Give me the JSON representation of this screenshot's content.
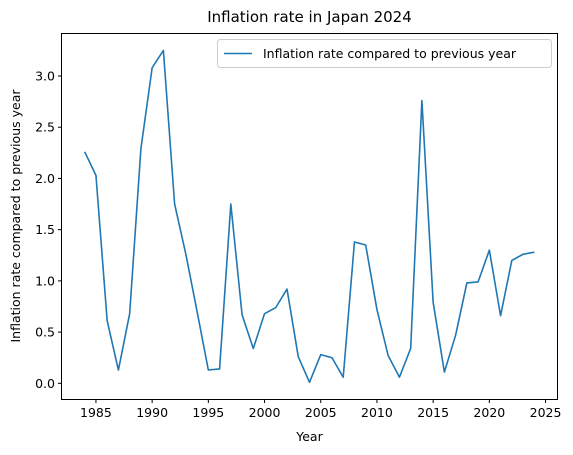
{
  "chart_data": {
    "type": "line",
    "title": "Inflation rate in Japan 2024",
    "xlabel": "Year",
    "ylabel": "Inflation rate compared to previous year",
    "xlim": [
      1981.98,
      2026.02
    ],
    "ylim": [
      -0.153,
      3.41
    ],
    "xticks": [
      1985,
      1990,
      1995,
      2000,
      2005,
      2010,
      2015,
      2020,
      2025
    ],
    "yticks": [
      0.0,
      0.5,
      1.0,
      1.5,
      2.0,
      2.5,
      3.0
    ],
    "grid": false,
    "legend_position": "top-right",
    "series_color": "#1f77b4",
    "series": [
      {
        "name": "Inflation rate compared to previous year",
        "x": [
          1984,
          1985,
          1986,
          1987,
          1988,
          1989,
          1990,
          1991,
          1992,
          1993,
          1994,
          1995,
          1996,
          1997,
          1998,
          1999,
          2000,
          2001,
          2002,
          2003,
          2004,
          2005,
          2006,
          2007,
          2008,
          2009,
          2010,
          2011,
          2012,
          2013,
          2014,
          2015,
          2016,
          2017,
          2018,
          2019,
          2020,
          2021,
          2022,
          2023,
          2024
        ],
        "y": [
          2.26,
          2.03,
          0.61,
          0.13,
          0.68,
          2.29,
          3.08,
          3.25,
          1.75,
          1.26,
          0.7,
          0.13,
          0.14,
          1.75,
          0.67,
          0.34,
          0.68,
          0.74,
          0.92,
          0.26,
          0.01,
          0.28,
          0.25,
          0.06,
          1.38,
          1.35,
          0.72,
          0.27,
          0.06,
          0.34,
          2.76,
          0.79,
          0.11,
          0.47,
          0.98,
          0.99,
          1.3,
          0.66,
          1.2,
          1.26,
          1.28
        ]
      }
    ]
  }
}
